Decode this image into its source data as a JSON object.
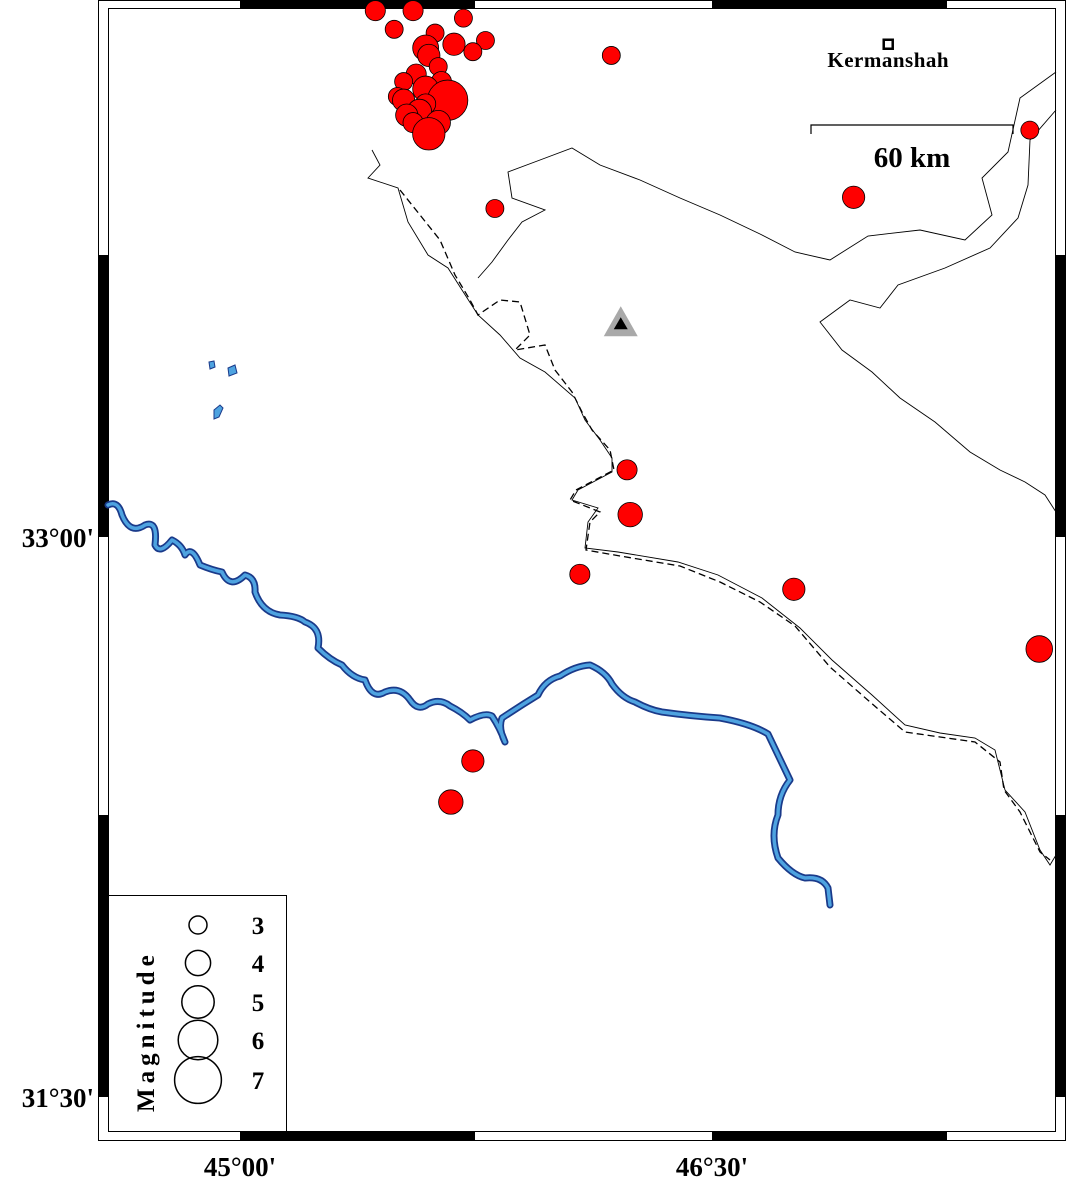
{
  "map": {
    "lon_ticks": [
      {
        "label": "45°00'",
        "lon": 45.0
      },
      {
        "label": "46°30'",
        "lon": 46.5
      }
    ],
    "lat_ticks": [
      {
        "label": "33°00'",
        "lat": 33.0
      },
      {
        "label": "31°30'",
        "lat": 31.5
      }
    ],
    "city": {
      "name": "Kermanshah",
      "lon": 47.06,
      "lat": 34.32
    },
    "station": {
      "symbol": "triangle",
      "lon": 46.21,
      "lat": 33.57,
      "color": "#000000",
      "halo": "#a9a9a9"
    },
    "scale_bar": {
      "label": "60 km"
    },
    "colors": {
      "event": "#ff0000",
      "river": "#4ea3e0",
      "river_outline": "#1a3a8a"
    },
    "events": [
      {
        "lon": 45.43,
        "lat": 34.41,
        "mag": 3.3
      },
      {
        "lon": 45.55,
        "lat": 34.41,
        "mag": 3.3
      },
      {
        "lon": 45.71,
        "lat": 34.39,
        "mag": 3.0
      },
      {
        "lon": 45.49,
        "lat": 34.36,
        "mag": 3.0
      },
      {
        "lon": 45.62,
        "lat": 34.35,
        "mag": 3.0
      },
      {
        "lon": 45.78,
        "lat": 34.33,
        "mag": 3.0
      },
      {
        "lon": 45.59,
        "lat": 34.31,
        "mag": 4.1
      },
      {
        "lon": 45.68,
        "lat": 34.32,
        "mag": 3.6
      },
      {
        "lon": 45.74,
        "lat": 34.3,
        "mag": 3.0
      },
      {
        "lon": 45.6,
        "lat": 34.29,
        "mag": 3.6
      },
      {
        "lon": 45.63,
        "lat": 34.26,
        "mag": 3.0
      },
      {
        "lon": 45.56,
        "lat": 34.24,
        "mag": 3.3
      },
      {
        "lon": 45.52,
        "lat": 34.22,
        "mag": 3.0
      },
      {
        "lon": 45.64,
        "lat": 34.22,
        "mag": 3.3
      },
      {
        "lon": 45.59,
        "lat": 34.2,
        "mag": 4.1
      },
      {
        "lon": 45.5,
        "lat": 34.18,
        "mag": 3.0
      },
      {
        "lon": 45.66,
        "lat": 34.17,
        "mag": 6.1
      },
      {
        "lon": 45.52,
        "lat": 34.17,
        "mag": 3.6
      },
      {
        "lon": 45.59,
        "lat": 34.16,
        "mag": 3.3
      },
      {
        "lon": 45.57,
        "lat": 34.14,
        "mag": 3.9
      },
      {
        "lon": 45.53,
        "lat": 34.13,
        "mag": 3.6
      },
      {
        "lon": 45.55,
        "lat": 34.11,
        "mag": 3.3
      },
      {
        "lon": 45.63,
        "lat": 34.11,
        "mag": 3.9
      },
      {
        "lon": 45.6,
        "lat": 34.08,
        "mag": 5.0
      },
      {
        "lon": 46.18,
        "lat": 34.29,
        "mag": 3.0
      },
      {
        "lon": 47.51,
        "lat": 34.09,
        "mag": 3.0
      },
      {
        "lon": 46.95,
        "lat": 33.91,
        "mag": 3.6
      },
      {
        "lon": 45.81,
        "lat": 33.88,
        "mag": 3.0
      },
      {
        "lon": 46.23,
        "lat": 33.18,
        "mag": 3.3
      },
      {
        "lon": 46.24,
        "lat": 33.06,
        "mag": 3.9
      },
      {
        "lon": 46.08,
        "lat": 32.9,
        "mag": 3.3
      },
      {
        "lon": 46.76,
        "lat": 32.86,
        "mag": 3.6
      },
      {
        "lon": 47.54,
        "lat": 32.7,
        "mag": 4.2
      },
      {
        "lon": 45.74,
        "lat": 32.4,
        "mag": 3.6
      },
      {
        "lon": 45.67,
        "lat": 32.29,
        "mag": 3.9
      }
    ]
  },
  "legend": {
    "title": "Magnitude",
    "items": [
      {
        "label": "3",
        "mag": 3
      },
      {
        "label": "4",
        "mag": 4
      },
      {
        "label": "5",
        "mag": 5
      },
      {
        "label": "6",
        "mag": 6
      },
      {
        "label": "7",
        "mag": 7
      }
    ]
  }
}
